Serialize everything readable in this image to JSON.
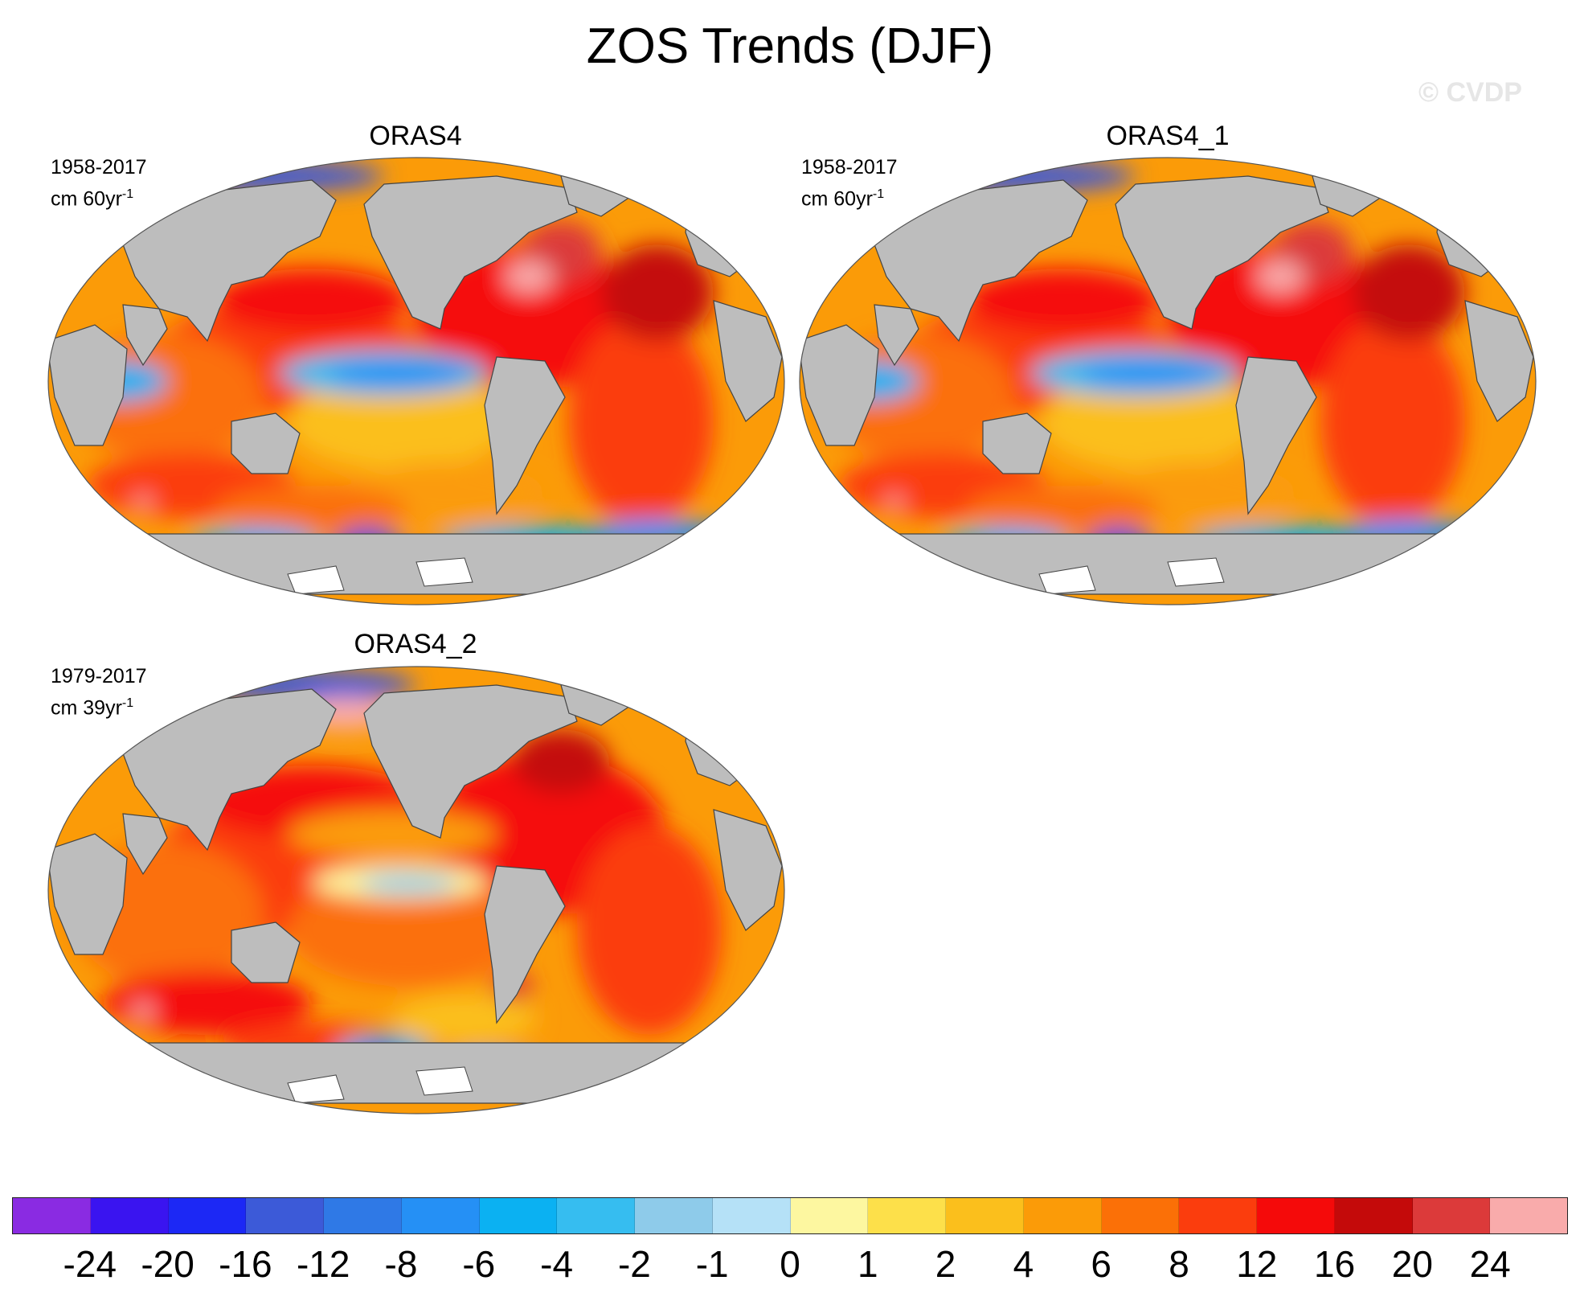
{
  "title": "ZOS Trends (DJF)",
  "watermark": "© CVDP",
  "panels": [
    {
      "name": "ORAS4",
      "period": "1958-2017",
      "units_prefix": "cm 60yr",
      "units_exp": "-1"
    },
    {
      "name": "ORAS4_1",
      "period": "1958-2017",
      "units_prefix": "cm 60yr",
      "units_exp": "-1"
    },
    {
      "name": "ORAS4_2",
      "period": "1979-2017",
      "units_prefix": "cm 39yr",
      "units_exp": "-1"
    }
  ],
  "colorbar": {
    "colors": [
      "#8a2be2",
      "#3a14f0",
      "#1c28f5",
      "#3c5ad8",
      "#2f79e6",
      "#2590f5",
      "#0bb1f2",
      "#36bdf0",
      "#8ecbea",
      "#b5e1f7",
      "#fdf7a0",
      "#fde04a",
      "#fbbf1c",
      "#fb9b08",
      "#fb7007",
      "#fb3d0d",
      "#f50a0a",
      "#c40a0a",
      "#dc3a3a",
      "#f9abab"
    ],
    "labels": [
      "-24",
      "-20",
      "-16",
      "-12",
      "-8",
      "-6",
      "-4",
      "-2",
      "-1",
      "0",
      "1",
      "2",
      "4",
      "6",
      "8",
      "12",
      "16",
      "20",
      "24"
    ]
  },
  "map_colors": {
    "land": "#bdbdbd",
    "coast": "#444444",
    "antarctic_ice": "#ffffff"
  }
}
